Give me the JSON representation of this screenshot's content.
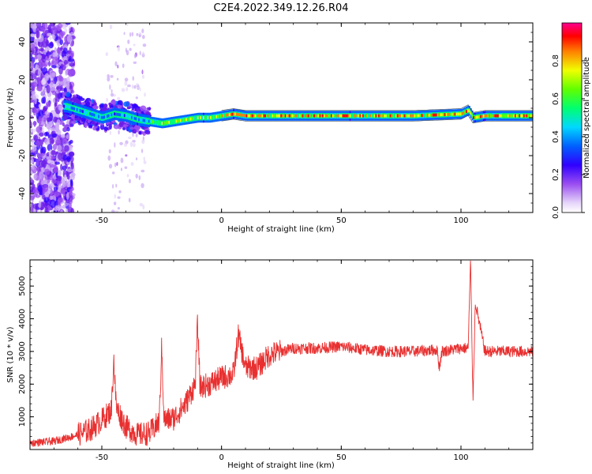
{
  "figure_title": "C2E4.2022.349.12.26.R04",
  "chart_data": [
    {
      "type": "heatmap",
      "xlabel": "Height of straight line (km)",
      "ylabel": "Frequency (Hz)",
      "xlim": [
        -80,
        130
      ],
      "ylim": [
        -50,
        50
      ],
      "xticks": [
        -50,
        0,
        50,
        100
      ],
      "yticks": [
        -40,
        -20,
        0,
        20,
        40
      ],
      "colorbar": {
        "label": "Normalized spectral amplitude",
        "range": [
          0,
          1
        ],
        "ticks": [
          "0.0",
          "0.2",
          "0.4",
          "0.6",
          "0.8"
        ],
        "colormap": [
          "#ffffff",
          "#d8c2f5",
          "#8a2be2",
          "#4b00e0",
          "#0000ff",
          "#00c8ff",
          "#00ff80",
          "#80ff00",
          "#ffff00",
          "#ff8000",
          "#ff0000",
          "#ff00a0"
        ]
      },
      "ridge_frequency": {
        "x": [
          -65,
          -60,
          -55,
          -50,
          -45,
          -40,
          -35,
          -30,
          -25,
          -20,
          -15,
          -10,
          -5,
          0,
          5,
          10,
          20,
          40,
          60,
          80,
          100,
          103,
          105,
          110,
          120,
          130
        ],
        "y": [
          6,
          4,
          2,
          0,
          2,
          1,
          -1,
          -2,
          -3,
          -2,
          -1,
          0,
          0,
          1,
          2,
          1,
          1,
          1,
          1,
          1,
          2,
          4,
          0,
          1,
          1,
          1
        ]
      }
    },
    {
      "type": "line",
      "xlabel": "Height of straight line (km)",
      "ylabel": "SNR (10 * v/v)",
      "xlim": [
        -80,
        130
      ],
      "ylim": [
        0,
        5800
      ],
      "xticks": [
        -50,
        0,
        50,
        100
      ],
      "yticks": [
        1000,
        2000,
        3000,
        4000,
        5000
      ],
      "line_color": "#e83030",
      "series": [
        {
          "x": [
            -80,
            -70,
            -60,
            -55,
            -50,
            -46,
            -45,
            -44,
            -40,
            -35,
            -30,
            -26,
            -25,
            -24,
            -20,
            -15,
            -11,
            -10,
            -9,
            -5,
            0,
            5,
            7,
            10,
            15,
            20,
            25,
            30,
            40,
            50,
            60,
            70,
            80,
            90,
            91,
            92,
            100,
            103,
            104,
            105,
            106,
            110,
            120,
            130
          ],
          "y": [
            200,
            250,
            450,
            600,
            900,
            1200,
            2800,
            1300,
            700,
            450,
            500,
            850,
            3150,
            900,
            950,
            1400,
            2000,
            3900,
            1900,
            2000,
            2200,
            2300,
            3500,
            2500,
            2500,
            2900,
            3000,
            3100,
            3100,
            3150,
            3050,
            3000,
            3000,
            3050,
            2500,
            3000,
            3100,
            3100,
            5800,
            1500,
            4500,
            3000,
            3000,
            3000
          ]
        }
      ]
    }
  ]
}
